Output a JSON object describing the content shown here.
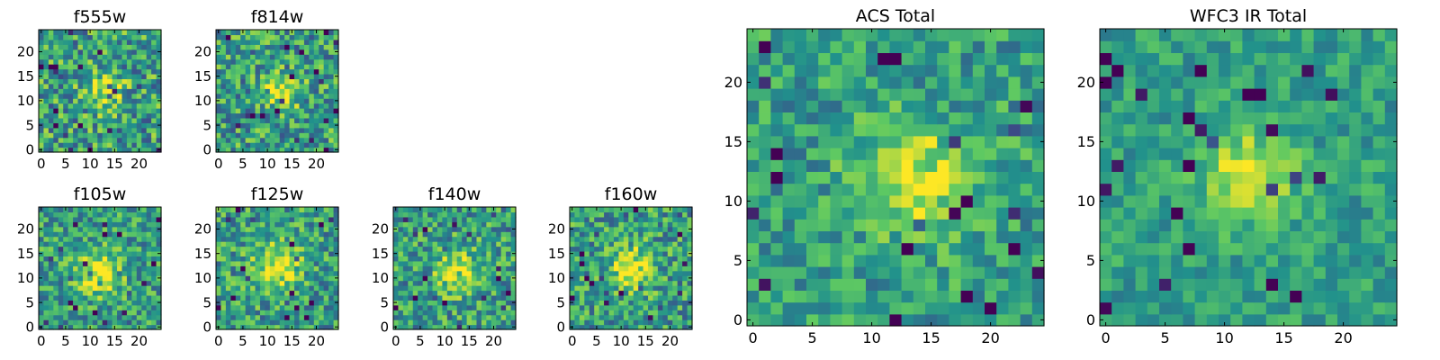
{
  "chart_data": [
    {
      "type": "heatmap",
      "title": "f555w",
      "xlim": [
        -0.5,
        24.5
      ],
      "ylim": [
        -0.5,
        24.5
      ],
      "x_ticks": [
        0,
        5,
        10,
        15,
        20
      ],
      "y_ticks": [
        0,
        5,
        10,
        15,
        20
      ],
      "grid": false,
      "source_center": [
        13,
        12
      ],
      "source_sigma": 2.6,
      "noise": 0.32,
      "seed": 5
    },
    {
      "type": "heatmap",
      "title": "f814w",
      "xlim": [
        -0.5,
        24.5
      ],
      "ylim": [
        -0.5,
        24.5
      ],
      "x_ticks": [
        0,
        5,
        10,
        15,
        20
      ],
      "y_ticks": [
        0,
        5,
        10,
        15,
        20
      ],
      "grid": false,
      "source_center": [
        13,
        12
      ],
      "source_sigma": 2.6,
      "noise": 0.3,
      "seed": 11
    },
    {
      "type": "heatmap",
      "title": "f105w",
      "xlim": [
        -0.5,
        24.5
      ],
      "ylim": [
        -0.5,
        24.5
      ],
      "x_ticks": [
        0,
        5,
        10,
        15,
        20
      ],
      "y_ticks": [
        0,
        5,
        10,
        15,
        20
      ],
      "grid": false,
      "source_center": [
        12,
        11
      ],
      "source_sigma": 3.2,
      "noise": 0.26,
      "seed": 23
    },
    {
      "type": "heatmap",
      "title": "f125w",
      "xlim": [
        -0.5,
        24.5
      ],
      "ylim": [
        -0.5,
        24.5
      ],
      "x_ticks": [
        0,
        5,
        10,
        15,
        20
      ],
      "y_ticks": [
        0,
        5,
        10,
        15,
        20
      ],
      "grid": false,
      "source_center": [
        12,
        12
      ],
      "source_sigma": 3.2,
      "noise": 0.28,
      "seed": 31
    },
    {
      "type": "heatmap",
      "title": "f140w",
      "xlim": [
        -0.5,
        24.5
      ],
      "ylim": [
        -0.5,
        24.5
      ],
      "x_ticks": [
        0,
        5,
        10,
        15,
        20
      ],
      "y_ticks": [
        0,
        5,
        10,
        15,
        20
      ],
      "grid": false,
      "source_center": [
        13,
        11
      ],
      "source_sigma": 3.0,
      "noise": 0.28,
      "seed": 47
    },
    {
      "type": "heatmap",
      "title": "f160w",
      "xlim": [
        -0.5,
        24.5
      ],
      "ylim": [
        -0.5,
        24.5
      ],
      "x_ticks": [
        0,
        5,
        10,
        15,
        20
      ],
      "y_ticks": [
        0,
        5,
        10,
        15,
        20
      ],
      "grid": false,
      "source_center": [
        12,
        12
      ],
      "source_sigma": 3.0,
      "noise": 0.28,
      "seed": 59
    },
    {
      "type": "heatmap",
      "title": "ACS Total",
      "xlim": [
        -0.5,
        24.5
      ],
      "ylim": [
        -0.5,
        24.5
      ],
      "x_ticks": [
        0,
        5,
        10,
        15,
        20
      ],
      "y_ticks": [
        0,
        5,
        10,
        15,
        20
      ],
      "grid": false,
      "source_center": [
        13,
        12
      ],
      "source_sigma": 3.2,
      "noise": 0.22,
      "seed": 71
    },
    {
      "type": "heatmap",
      "title": "WFC3 IR Total",
      "xlim": [
        -0.5,
        24.5
      ],
      "ylim": [
        -0.5,
        24.5
      ],
      "x_ticks": [
        0,
        5,
        10,
        15,
        20
      ],
      "y_ticks": [
        0,
        5,
        10,
        15,
        20
      ],
      "grid": false,
      "source_center": [
        12,
        12
      ],
      "source_sigma": 2.6,
      "noise": 0.16,
      "seed": 83
    }
  ],
  "colormap": {
    "name": "viridis",
    "stops": [
      "#440154",
      "#3b528b",
      "#21918c",
      "#5ec962",
      "#fde725"
    ]
  },
  "grid_size": 25
}
